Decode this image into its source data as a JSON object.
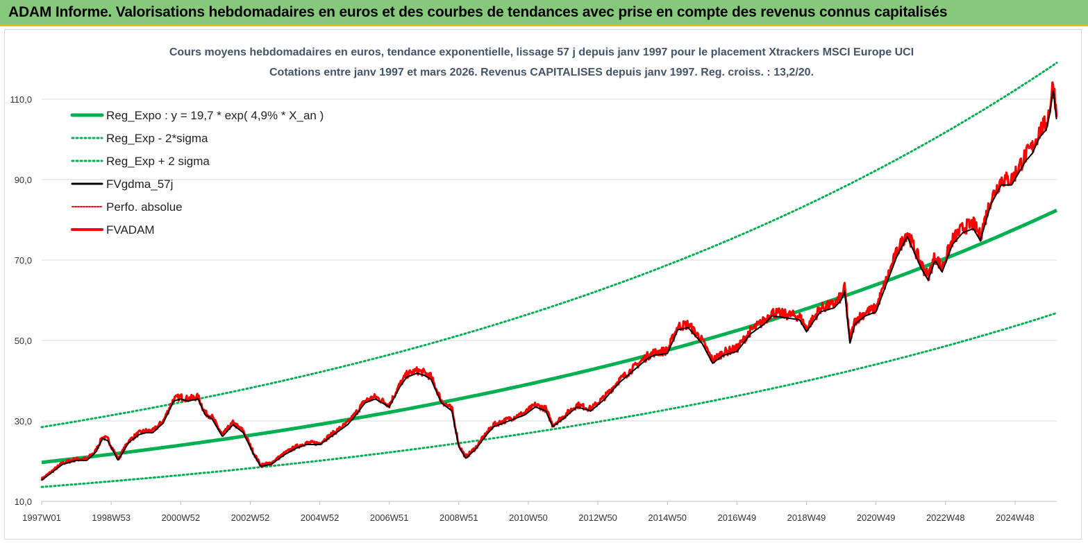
{
  "header": {
    "title": "ADAM Informe. Valorisations hebdomadaires en euros et des courbes de tendances avec prise en compte des revenus connus capitalisés"
  },
  "colors": {
    "banner": "#86c97a",
    "banner_border": "#f0b800",
    "trend": "#00b050",
    "price": "#ff0000",
    "smooth": "#000000",
    "title": "#44546a"
  },
  "chart_data": {
    "type": "line",
    "title": "Cours moyens hebdomadaires en euros, tendance exponentielle, lissage 57 j depuis janv 1997  pour le placement Xtrackers MSCI Europe UCI",
    "subtitle": "Cotations entre janv 1997 et mars 2026. Revenus CAPITALISES  depuis janv 1997. Reg. croiss. : 13,2/20.",
    "xlabel": "",
    "ylabel": "",
    "ylim": [
      10,
      120
    ],
    "yticks": [
      "10,0",
      "30,0",
      "50,0",
      "70,0",
      "90,0",
      "110,0"
    ],
    "xlim": [
      1997.0,
      2026.2
    ],
    "xticks": [
      {
        "label": "1997W01",
        "x": 1997.0
      },
      {
        "label": "1998W53",
        "x": 1999.0
      },
      {
        "label": "2000W52",
        "x": 2001.0
      },
      {
        "label": "2002W52",
        "x": 2003.0
      },
      {
        "label": "2004W52",
        "x": 2005.0
      },
      {
        "label": "2006W51",
        "x": 2007.0
      },
      {
        "label": "2008W51",
        "x": 2009.0
      },
      {
        "label": "2010W50",
        "x": 2011.0
      },
      {
        "label": "2012W50",
        "x": 2013.0
      },
      {
        "label": "2014W50",
        "x": 2015.0
      },
      {
        "label": "2016W49",
        "x": 2017.0
      },
      {
        "label": "2018W49",
        "x": 2019.0
      },
      {
        "label": "2020W49",
        "x": 2021.0
      },
      {
        "label": "2022W48",
        "x": 2023.0
      },
      {
        "label": "2024W48",
        "x": 2025.0
      }
    ],
    "grid": "horizontal",
    "legend": "top-left",
    "regression": {
      "a": 19.7,
      "rate": 0.049,
      "band_upper_factor": 1.445,
      "band_lower_factor": 0.69
    },
    "series": [
      {
        "name": "Reg_Expo : y = 19,7 * exp( 4,9% *  X_an )",
        "style": "trend"
      },
      {
        "name": "Reg_Exp - 2*sigma",
        "style": "band"
      },
      {
        "name": "Reg_Exp + 2 sigma",
        "style": "band"
      },
      {
        "name": "FVgdma_57j",
        "style": "smooth"
      },
      {
        "name": "Perfo. absolue",
        "style": "dotted-red"
      },
      {
        "name": "FVADAM",
        "style": "price",
        "x": [
          1997.0,
          1997.3,
          1997.6,
          1998.0,
          1998.3,
          1998.55,
          1998.75,
          1998.9,
          1999.2,
          1999.5,
          1999.8,
          2000.0,
          2000.2,
          2000.5,
          2000.8,
          2001.0,
          2001.2,
          2001.5,
          2001.7,
          2001.9,
          2002.2,
          2002.5,
          2002.8,
          2003.1,
          2003.3,
          2003.6,
          2004.0,
          2004.3,
          2004.6,
          2005.0,
          2005.4,
          2005.8,
          2006.0,
          2006.3,
          2006.6,
          2007.0,
          2007.3,
          2007.5,
          2007.8,
          2008.0,
          2008.2,
          2008.5,
          2008.8,
          2009.0,
          2009.2,
          2009.5,
          2009.8,
          2010.0,
          2010.3,
          2010.6,
          2010.9,
          2011.2,
          2011.5,
          2011.7,
          2012.0,
          2012.4,
          2012.8,
          2013.2,
          2013.6,
          2014.0,
          2014.4,
          2014.6,
          2015.0,
          2015.3,
          2015.6,
          2016.0,
          2016.3,
          2016.6,
          2017.0,
          2017.4,
          2017.8,
          2018.0,
          2018.4,
          2018.8,
          2019.0,
          2019.4,
          2019.8,
          2020.0,
          2020.1,
          2020.25,
          2020.4,
          2020.7,
          2021.0,
          2021.3,
          2021.6,
          2021.9,
          2022.1,
          2022.3,
          2022.5,
          2022.7,
          2022.9,
          2023.2,
          2023.5,
          2023.8,
          2024.0,
          2024.3,
          2024.6,
          2024.9,
          2025.1,
          2025.3,
          2025.5,
          2025.7,
          2025.9,
          2026.0,
          2026.1,
          2026.2
        ],
        "y": [
          15.5,
          17.5,
          19.5,
          20.5,
          20.5,
          22.5,
          26,
          25.5,
          20.5,
          25,
          27,
          27.5,
          27.5,
          30,
          35.5,
          36,
          35.5,
          36,
          32,
          31,
          26.5,
          29.5,
          27.5,
          22,
          19,
          19.5,
          22,
          23.5,
          24.5,
          24.5,
          27,
          29.5,
          31.5,
          35,
          36,
          34,
          39,
          41.5,
          42.5,
          42,
          41,
          35,
          33,
          24,
          21,
          23.5,
          27,
          29,
          30,
          31,
          32,
          34,
          33,
          29,
          31,
          34,
          33,
          36,
          40,
          43,
          46,
          47,
          47.5,
          53.5,
          54,
          50,
          45,
          47,
          48,
          52.5,
          55,
          57,
          56.5,
          56,
          53,
          58,
          59,
          61,
          63,
          50,
          55,
          57,
          58,
          65,
          72,
          77,
          73,
          69,
          66,
          71,
          68,
          75,
          78,
          79,
          76,
          85,
          90,
          90,
          93,
          96,
          98,
          102,
          104,
          108,
          114,
          106
        ]
      }
    ]
  }
}
